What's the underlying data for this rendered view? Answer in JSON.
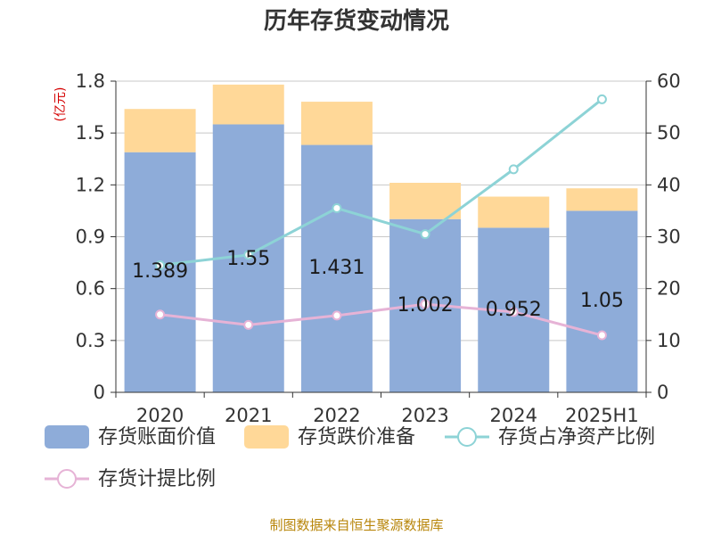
{
  "chart_data": {
    "type": "bar",
    "title": "历年存货变动情况",
    "y_left_unit": "(亿元)",
    "y_left_ticks": [
      "0",
      "0.3",
      "0.6",
      "0.9",
      "1.2",
      "1.5",
      "1.8"
    ],
    "y_right_ticks": [
      "0",
      "10",
      "20",
      "30",
      "40",
      "50",
      "60"
    ],
    "ylim_left": [
      0,
      1.8
    ],
    "ylim_right": [
      0,
      60
    ],
    "categories": [
      "2020",
      "2021",
      "2022",
      "2023",
      "2024",
      "2025H1"
    ],
    "bar_series": [
      {
        "name": "存货账面价值",
        "values": [
          1.389,
          1.55,
          1.431,
          1.002,
          0.952,
          1.05
        ],
        "labels": [
          "1.389",
          "1.55",
          "1.431",
          "1.002",
          "0.952",
          "1.05"
        ],
        "color": "#8eacd9"
      },
      {
        "name": "存货跌价准备",
        "values": [
          0.25,
          0.23,
          0.25,
          0.21,
          0.18,
          0.13
        ],
        "color": "#ffd898"
      }
    ],
    "line_series": [
      {
        "name": "存货占净资产比例",
        "values": [
          24.5,
          26.5,
          35.5,
          30.5,
          43.0,
          56.5
        ],
        "color": "#8dd3d6"
      },
      {
        "name": "存货计提比例",
        "values": [
          15.0,
          13.0,
          14.8,
          17.0,
          15.5,
          11.0
        ],
        "color": "#e6b3d6"
      }
    ],
    "grid": true,
    "legend_position": "bottom"
  },
  "source_text": "制图数据来自恒生聚源数据库"
}
